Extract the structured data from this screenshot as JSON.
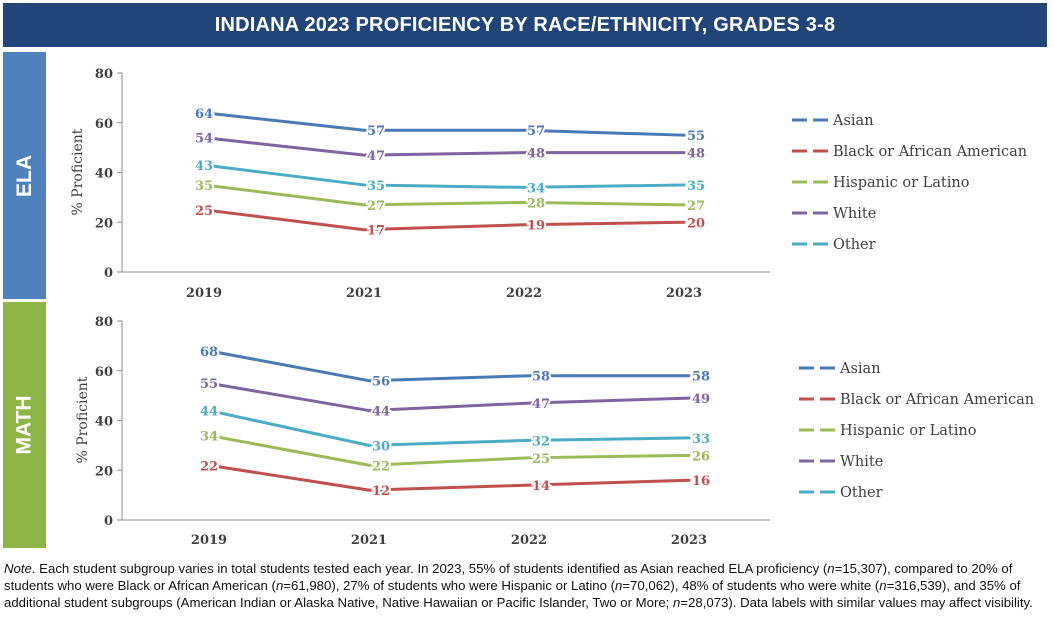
{
  "title": "INDIANA 2023 PROFICIENCY BY RACE/ETHNICITY, GRADES 3-8",
  "panels": {
    "ela_label": "ELA",
    "math_label": "MATH"
  },
  "note": {
    "prefix": "Note",
    "body": ". Each student subgroup varies in total students tested each year. In 2023, 55% of students identified as Asian reached ELA proficiency (",
    "n_letter": "n",
    "p1": "=15,307), compared to 20% of students who were Black or African American (",
    "p2": "=61,980), 27% of students who were Hispanic or Latino (",
    "p3": "=70,062), 48% of students who were white (",
    "p4": "=316,539), and 35% of additional student subgroups (American Indian or Alaska Native, Native Hawaiian or Pacific Islander, Two or More; ",
    "p5": "=28,073). Data labels with similar values may affect visibility."
  },
  "colors": {
    "Asian": "#4A7AB5",
    "Black or African American": "#C0504D",
    "Hispanic or Latino": "#9BBB59",
    "White": "#8064A2",
    "Other": "#4BACC6"
  },
  "chart_data": [
    {
      "type": "line",
      "subject": "ELA",
      "x": [
        "2019",
        "2021",
        "2022",
        "2023"
      ],
      "ylabel": "% Proficient",
      "ylim": [
        0,
        80
      ],
      "yticks": [
        0,
        20,
        40,
        60,
        80
      ],
      "legend_position": "right",
      "series": [
        {
          "name": "Asian",
          "values": [
            64,
            57,
            57,
            55
          ]
        },
        {
          "name": "Black or African American",
          "values": [
            25,
            17,
            19,
            20
          ]
        },
        {
          "name": "Hispanic or Latino",
          "values": [
            35,
            27,
            28,
            27
          ]
        },
        {
          "name": "White",
          "values": [
            54,
            47,
            48,
            48
          ]
        },
        {
          "name": "Other",
          "values": [
            43,
            35,
            34,
            35
          ]
        }
      ]
    },
    {
      "type": "line",
      "subject": "MATH",
      "x": [
        "2019",
        "2021",
        "2022",
        "2023"
      ],
      "ylabel": "% Proficient",
      "ylim": [
        0,
        80
      ],
      "yticks": [
        0,
        20,
        40,
        60,
        80
      ],
      "legend_position": "right",
      "series": [
        {
          "name": "Asian",
          "values": [
            68,
            56,
            58,
            58
          ]
        },
        {
          "name": "Black or African American",
          "values": [
            22,
            12,
            14,
            16
          ]
        },
        {
          "name": "Hispanic or Latino",
          "values": [
            34,
            22,
            25,
            26
          ]
        },
        {
          "name": "White",
          "values": [
            55,
            44,
            47,
            49
          ]
        },
        {
          "name": "Other",
          "values": [
            44,
            30,
            32,
            33
          ]
        }
      ]
    }
  ]
}
